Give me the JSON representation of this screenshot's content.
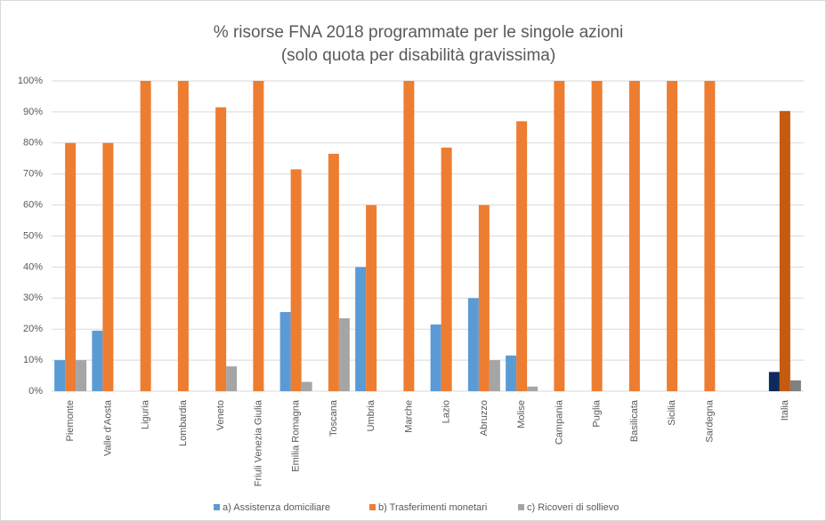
{
  "chart_data": {
    "type": "bar",
    "title": "% risorse FNA 2018 programmate per le singole azioni",
    "subtitle": "(solo quota per disabilità gravissima)",
    "categories": [
      "Piemonte",
      "Valle d'Aosta",
      "Liguria",
      "Lombardia",
      "Veneto",
      "Friuli Venezia Giulia",
      "Emilia Romagna",
      "Toscana",
      "Umbria",
      "Marche",
      "Lazio",
      "Abruzzo",
      "Molise",
      "Campania",
      "Puglia",
      "Basilicata",
      "Sicilia",
      "Sardegna",
      null,
      "Italia"
    ],
    "series": [
      {
        "name": "a) Assistenza domiciliare",
        "color": "#5b9bd5",
        "colors": [
          "#5b9bd5",
          "#5b9bd5",
          "#5b9bd5",
          "#5b9bd5",
          "#5b9bd5",
          "#5b9bd5",
          "#5b9bd5",
          "#5b9bd5",
          "#5b9bd5",
          "#5b9bd5",
          "#5b9bd5",
          "#5b9bd5",
          "#5b9bd5",
          "#5b9bd5",
          "#5b9bd5",
          "#5b9bd5",
          "#5b9bd5",
          "#5b9bd5",
          "#5b9bd5",
          "#0e2a5c"
        ],
        "values": [
          10,
          19.5,
          0,
          0,
          0,
          0,
          25.5,
          0,
          40,
          0,
          21.5,
          30,
          11.5,
          0,
          0,
          0,
          0,
          0,
          null,
          6.2
        ]
      },
      {
        "name": "b) Trasferimenti monetari",
        "color": "#ed7d31",
        "colors": [
          "#ed7d31",
          "#ed7d31",
          "#ed7d31",
          "#ed7d31",
          "#ed7d31",
          "#ed7d31",
          "#ed7d31",
          "#ed7d31",
          "#ed7d31",
          "#ed7d31",
          "#ed7d31",
          "#ed7d31",
          "#ed7d31",
          "#ed7d31",
          "#ed7d31",
          "#ed7d31",
          "#ed7d31",
          "#ed7d31",
          "#ed7d31",
          "#c55a11"
        ],
        "values": [
          80,
          80,
          100,
          100,
          91.5,
          100,
          71.5,
          76.5,
          60,
          100,
          78.5,
          60,
          87,
          100,
          100,
          100,
          100,
          100,
          null,
          90.3
        ]
      },
      {
        "name": "c) Ricoveri di sollievo",
        "color": "#a5a5a5",
        "colors": [
          "#a5a5a5",
          "#a5a5a5",
          "#a5a5a5",
          "#a5a5a5",
          "#a5a5a5",
          "#a5a5a5",
          "#a5a5a5",
          "#a5a5a5",
          "#a5a5a5",
          "#a5a5a5",
          "#a5a5a5",
          "#a5a5a5",
          "#a5a5a5",
          "#a5a5a5",
          "#a5a5a5",
          "#a5a5a5",
          "#a5a5a5",
          "#a5a5a5",
          "#a5a5a5",
          "#808080"
        ],
        "values": [
          10,
          0,
          0,
          0,
          8,
          0,
          3,
          23.5,
          0,
          0,
          0,
          10,
          1.5,
          0,
          0,
          0,
          0,
          0,
          null,
          3.5
        ]
      }
    ],
    "ylim": [
      0,
      100
    ],
    "yticks": [
      {
        "value": 0,
        "label": "0%"
      },
      {
        "value": 10,
        "label": "10%"
      },
      {
        "value": 20,
        "label": "20%"
      },
      {
        "value": 30,
        "label": "30%"
      },
      {
        "value": 40,
        "label": "40%"
      },
      {
        "value": 50,
        "label": "50%"
      },
      {
        "value": 60,
        "label": "60%"
      },
      {
        "value": 70,
        "label": "70%"
      },
      {
        "value": 80,
        "label": "80%"
      },
      {
        "value": 90,
        "label": "90%"
      },
      {
        "value": 100,
        "label": "100%"
      }
    ],
    "grid": true,
    "legend": "bottom"
  }
}
